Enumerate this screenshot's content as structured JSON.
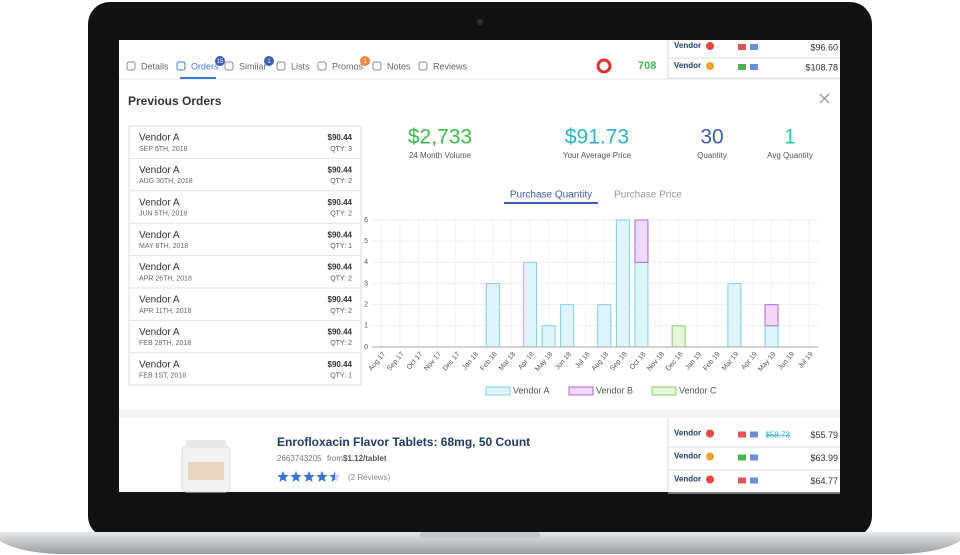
{
  "nav": {
    "tabs": [
      {
        "label": "Details"
      },
      {
        "label": "Orders",
        "badge": "15"
      },
      {
        "label": "Similar",
        "badge": "1"
      },
      {
        "label": "Lists"
      },
      {
        "label": "Promos",
        "badge": "1"
      },
      {
        "label": "Notes"
      },
      {
        "label": "Reviews"
      }
    ],
    "score": "708"
  },
  "side_vendors_top": [
    {
      "name": "Vendor",
      "price": "$96.60"
    },
    {
      "name": "Vendor",
      "price": "$108.78"
    }
  ],
  "panel": {
    "title": "Previous Orders",
    "orders": [
      {
        "vendor": "Vendor A",
        "date": "SEP 6TH, 2018",
        "price": "$90.44",
        "qty": "QTY: 3"
      },
      {
        "vendor": "Vendor A",
        "date": "AUG 30TH, 2018",
        "price": "$90.44",
        "qty": "QTY: 2"
      },
      {
        "vendor": "Vendor A",
        "date": "JUN 5TH, 2018",
        "price": "$90.44",
        "qty": "QTY: 2"
      },
      {
        "vendor": "Vendor A",
        "date": "MAY 8TH, 2018",
        "price": "$90.44",
        "qty": "QTY: 1"
      },
      {
        "vendor": "Vendor A",
        "date": "APR 26TH, 2018",
        "price": "$90.44",
        "qty": "QTY: 2"
      },
      {
        "vendor": "Vendor A",
        "date": "APR 11TH, 2018",
        "price": "$90.44",
        "qty": "QTY: 2"
      },
      {
        "vendor": "Vendor A",
        "date": "FEB 28TH, 2018",
        "price": "$90.44",
        "qty": "QTY: 2"
      },
      {
        "vendor": "Vendor A",
        "date": "FEB 1ST, 2018",
        "price": "$90.44",
        "qty": "QTY: 1"
      }
    ],
    "stats": [
      {
        "value": "$2,733",
        "label": "24 Month Volume",
        "color": "#3fb950"
      },
      {
        "value": "$91.73",
        "label": "Your Average Price",
        "color": "#2bb3c9"
      },
      {
        "value": "30",
        "label": "Quantity",
        "color": "#3b5bb5"
      },
      {
        "value": "1",
        "label": "Avg Quantity",
        "color": "#3cc6a8"
      }
    ],
    "chart_tabs": [
      "Purchase Quantity",
      "Purchase Price"
    ]
  },
  "chart_data": {
    "type": "bar",
    "stacked": true,
    "categories": [
      "Aug 17",
      "Sep 17",
      "Oct 17",
      "Nov 17",
      "Dec 17",
      "Jan 18",
      "Feb 18",
      "Mar 18",
      "Apr 18",
      "May 18",
      "Jun 18",
      "Jul 18",
      "Aug 18",
      "Sep 18",
      "Oct 18",
      "Nov 18",
      "Dec 18",
      "Jan 19",
      "Feb 19",
      "Mar 19",
      "Apr 19",
      "May 19",
      "Jun 19",
      "Jul 19"
    ],
    "series": [
      {
        "name": "Vendor A",
        "color": "#7fd0ea",
        "fill": "#e0f4fb",
        "values": [
          0,
          0,
          0,
          0,
          0,
          0,
          3,
          0,
          4,
          1,
          2,
          0,
          2,
          6,
          4,
          0,
          0,
          0,
          0,
          3,
          0,
          1,
          0,
          0
        ]
      },
      {
        "name": "Vendor B",
        "color": "#b266d8",
        "fill": "#efd9f7",
        "values": [
          0,
          0,
          0,
          0,
          0,
          0,
          0,
          0,
          0,
          0,
          0,
          0,
          0,
          0,
          2,
          0,
          0,
          0,
          0,
          0,
          0,
          1,
          0,
          0
        ]
      },
      {
        "name": "Vendor C",
        "color": "#86cc6e",
        "fill": "#e6f6df",
        "values": [
          0,
          0,
          0,
          0,
          0,
          0,
          0,
          0,
          0,
          0,
          0,
          0,
          0,
          0,
          0,
          0,
          1,
          0,
          0,
          0,
          0,
          0,
          0,
          0
        ]
      }
    ],
    "ylim": [
      0,
      6
    ],
    "yticks": [
      0,
      1,
      2,
      3,
      4,
      5,
      6
    ],
    "grid": true
  },
  "product": {
    "title": "Enrofloxacin Flavor Tablets: 68mg, 50 Count",
    "sku": "2663743205",
    "from": "from",
    "price": "$1.12/tablet",
    "rating": 4.5,
    "reviews": "(2 Reviews)"
  },
  "side_vendors_bottom": [
    {
      "name": "Vendor",
      "old_price": "$58.73",
      "price": "$55.79"
    },
    {
      "name": "Vendor",
      "price": "$63.99"
    },
    {
      "name": "Vendor",
      "price": "$64.77"
    }
  ]
}
